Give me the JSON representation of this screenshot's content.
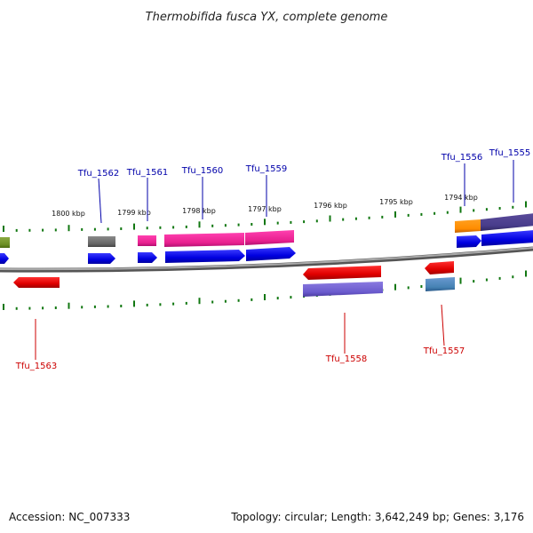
{
  "title": "Thermobifida fusca YX, complete genome",
  "footer": {
    "accession": "Accession: NC_007333",
    "summary": "Topology: circular; Length: 3,642,249 bp; Genes: 3,176"
  },
  "colors": {
    "forward_label": "#0000aa",
    "reverse_label": "#cc0000",
    "backbone": "#888888",
    "tick": "#117711"
  },
  "kbp_labels": [
    "1800 kbp",
    "1799 kbp",
    "1798 kbp",
    "1797 kbp",
    "1796 kbp",
    "1795 kbp",
    "1794 kbp"
  ],
  "genes": [
    {
      "label": "Tfu_1555",
      "strand": "forward"
    },
    {
      "label": "Tfu_1556",
      "strand": "forward"
    },
    {
      "label": "Tfu_1557",
      "strand": "reverse"
    },
    {
      "label": "Tfu_1558",
      "strand": "reverse"
    },
    {
      "label": "Tfu_1559",
      "strand": "forward"
    },
    {
      "label": "Tfu_1560",
      "strand": "forward"
    },
    {
      "label": "Tfu_1561",
      "strand": "forward"
    },
    {
      "label": "Tfu_1562",
      "strand": "forward"
    },
    {
      "label": "Tfu_1563",
      "strand": "reverse"
    }
  ]
}
